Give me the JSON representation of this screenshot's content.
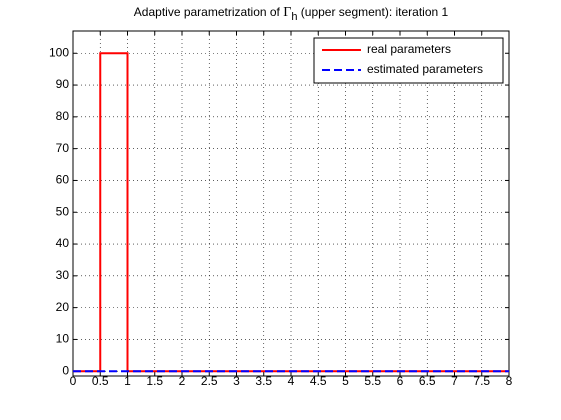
{
  "chart_data": {
    "type": "line",
    "title": {
      "text": "Adaptive parametrization of ",
      "symbol": "Γ",
      "subscript": "h",
      "rest": " (upper segment): iteration 1"
    },
    "series": [
      {
        "name": "real parameters",
        "color": "#ff0000",
        "style": "solid",
        "x": [
          0,
          0.5,
          0.5,
          1,
          1,
          8
        ],
        "values": [
          0,
          0,
          100,
          100,
          0,
          0
        ]
      },
      {
        "name": "estimated parameters",
        "color": "#0000ff",
        "style": "dashed",
        "x": [
          0,
          8
        ],
        "values": [
          0,
          0
        ]
      }
    ],
    "xlim": [
      0,
      8
    ],
    "xticks": [
      0,
      0.5,
      1,
      1.5,
      2,
      2.5,
      3,
      3.5,
      4,
      4.5,
      5,
      5.5,
      6,
      6.5,
      7,
      7.5,
      8
    ],
    "ylim": [
      -1.5,
      107
    ],
    "yticks": [
      0,
      10,
      20,
      30,
      40,
      50,
      60,
      70,
      80,
      90,
      100
    ],
    "grid": true,
    "legend": "northeast"
  }
}
